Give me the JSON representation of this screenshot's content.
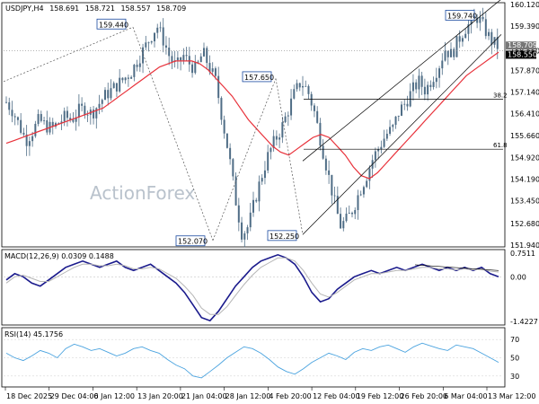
{
  "symbol_line": {
    "symbol": "USDJPY,H4",
    "open": "158.691",
    "high": "158.721",
    "low": "158.557",
    "close": "158.709"
  },
  "watermark": "ActionForex",
  "colors": {
    "candle": "#4f6d86",
    "ma": "#e8313a",
    "macd": "#1a1a8c",
    "signal": "#b5b5b5",
    "rsi": "#4aa3df",
    "channel": "#000000",
    "fib": "#000000"
  },
  "chart_data": [
    {
      "type": "candlestick",
      "title": "USDJPY,H4",
      "y_ticks": [
        "160.120",
        "159.390",
        "158.550",
        "157.870",
        "157.140",
        "156.410",
        "155.660",
        "154.920",
        "154.190",
        "153.450",
        "152.680",
        "151.940"
      ],
      "ylim": [
        151.94,
        160.12
      ],
      "x_ticks": [
        "18 Dec 2025",
        "29 Dec 04:00",
        "6 Jan 12:00",
        "13 Jan 20:00",
        "21 Jan 04:00",
        "28 Jan 12:00",
        "4 Feb 20:00",
        "12 Feb 04:00",
        "19 Feb 12:00",
        "26 Feb 20:00",
        "6 Mar 04:00",
        "13 Mar 12:00"
      ],
      "current_price_tags": [
        "158.709",
        "158.550"
      ],
      "price_path": [
        156.8,
        156.5,
        156.0,
        155.5,
        155.8,
        156.2,
        156.0,
        155.9,
        156.1,
        156.3,
        156.2,
        156.5,
        156.6,
        156.4,
        156.7,
        157.0,
        157.2,
        157.4,
        157.6,
        157.8,
        158.2,
        158.6,
        159.0,
        159.4,
        158.9,
        158.3,
        158.0,
        158.4,
        158.1,
        157.9,
        158.5,
        158.0,
        157.5,
        156.2,
        155.0,
        153.5,
        152.3,
        152.6,
        153.5,
        154.3,
        155.0,
        155.5,
        155.9,
        156.5,
        157.1,
        157.5,
        157.2,
        156.5,
        155.5,
        154.5,
        153.5,
        152.6,
        152.8,
        153.2,
        153.8,
        154.3,
        154.9,
        155.3,
        155.7,
        155.9,
        156.5,
        156.8,
        157.2,
        157.5,
        157.2,
        157.6,
        158.0,
        158.6,
        158.4,
        158.9,
        159.3,
        159.5,
        159.7,
        159.3,
        158.9,
        158.7
      ],
      "ma_path": [
        155.4,
        155.5,
        155.6,
        155.7,
        155.8,
        155.9,
        156.0,
        156.1,
        156.2,
        156.3,
        156.4,
        156.5,
        156.6,
        156.8,
        157.0,
        157.2,
        157.4,
        157.6,
        157.8,
        158.0,
        158.1,
        158.2,
        158.2,
        158.2,
        158.1,
        157.9,
        157.6,
        157.3,
        157.0,
        156.6,
        156.2,
        155.9,
        155.6,
        155.3,
        155.1,
        155.0,
        155.2,
        155.4,
        155.6,
        155.7,
        155.6,
        155.3,
        155.0,
        154.6,
        154.3,
        154.2,
        154.4,
        154.7,
        155.0,
        155.3,
        155.6,
        155.9,
        156.2,
        156.5,
        156.8,
        157.1,
        157.4,
        157.7,
        157.9,
        158.1,
        158.3,
        158.5
      ],
      "annotations": [
        {
          "text": "159.440",
          "price": 159.44
        },
        {
          "text": "152.070",
          "price": 152.07
        },
        {
          "text": "157.650",
          "price": 157.65
        },
        {
          "text": "152.250",
          "price": 152.25
        },
        {
          "text": "159.740",
          "price": 159.74
        }
      ],
      "fib_levels": [
        {
          "label": "38.2",
          "price": 156.9
        },
        {
          "label": "61.8",
          "price": 155.2
        }
      ]
    },
    {
      "type": "line",
      "title": "MACD(12,26,9) 0.0309 0.1488",
      "y_ticks": [
        "0.7511",
        "0.00",
        "-1.4227"
      ],
      "ylim": [
        -1.4227,
        0.7511
      ],
      "series": [
        {
          "name": "MACD",
          "values": [
            -0.1,
            0.1,
            0.0,
            -0.2,
            -0.3,
            -0.1,
            0.1,
            0.3,
            0.4,
            0.5,
            0.4,
            0.3,
            0.4,
            0.5,
            0.3,
            0.2,
            0.3,
            0.4,
            0.2,
            0.0,
            -0.2,
            -0.5,
            -0.9,
            -1.3,
            -1.4,
            -1.1,
            -0.7,
            -0.3,
            0.0,
            0.3,
            0.5,
            0.6,
            0.7,
            0.6,
            0.4,
            0.0,
            -0.5,
            -0.8,
            -0.7,
            -0.4,
            -0.2,
            0.0,
            0.1,
            0.2,
            0.1,
            0.2,
            0.3,
            0.2,
            0.3,
            0.4,
            0.3,
            0.2,
            0.3,
            0.2,
            0.3,
            0.2,
            0.3,
            0.1,
            0.0
          ]
        },
        {
          "name": "Signal",
          "values": [
            -0.2,
            0.0,
            0.05,
            -0.05,
            -0.15,
            -0.15,
            0.0,
            0.15,
            0.3,
            0.4,
            0.4,
            0.35,
            0.35,
            0.4,
            0.35,
            0.25,
            0.25,
            0.3,
            0.25,
            0.1,
            -0.05,
            -0.3,
            -0.6,
            -1.0,
            -1.2,
            -1.2,
            -0.95,
            -0.6,
            -0.25,
            0.05,
            0.3,
            0.45,
            0.6,
            0.6,
            0.5,
            0.2,
            -0.2,
            -0.55,
            -0.65,
            -0.5,
            -0.3,
            -0.1,
            0.0,
            0.1,
            0.1,
            0.15,
            0.2,
            0.2,
            0.25,
            0.3,
            0.3,
            0.25,
            0.25,
            0.22,
            0.25,
            0.22,
            0.25,
            0.18,
            0.15
          ]
        }
      ]
    },
    {
      "type": "line",
      "title": "RSI(14) 45.1756",
      "y_ticks": [
        "70",
        "50",
        "30"
      ],
      "ylim": [
        20,
        80
      ],
      "series": [
        {
          "name": "RSI",
          "values": [
            55,
            50,
            47,
            52,
            58,
            55,
            50,
            60,
            65,
            62,
            58,
            60,
            56,
            52,
            55,
            60,
            62,
            58,
            55,
            48,
            42,
            38,
            30,
            28,
            35,
            42,
            50,
            56,
            62,
            60,
            55,
            48,
            40,
            35,
            32,
            38,
            45,
            50,
            55,
            52,
            48,
            56,
            60,
            58,
            62,
            64,
            60,
            56,
            62,
            66,
            63,
            60,
            58,
            64,
            62,
            60,
            55,
            50,
            45
          ]
        }
      ]
    }
  ]
}
